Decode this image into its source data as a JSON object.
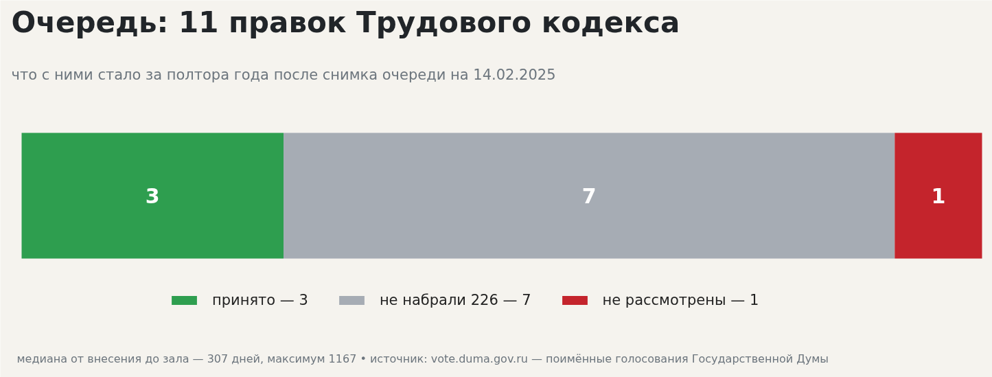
{
  "chart_data": {
    "type": "bar",
    "orientation": "horizontal",
    "stacked": true,
    "title": "Очередь: 11 правок Трудового кодекса",
    "subtitle": "что с ними стало за полтора года после снимка очереди на 14.02.2025",
    "categories": [
      null
    ],
    "series": [
      {
        "name": "принято — 3",
        "color": "#2e9e4f",
        "values": [
          3
        ]
      },
      {
        "name": "не набрали 226 — 7",
        "color": "#a6acb4",
        "values": [
          7
        ]
      },
      {
        "name": "не рассмотрены — 1",
        "color": "#c4242c",
        "values": [
          1
        ]
      }
    ],
    "data_labels": true,
    "legend": "bottom",
    "grid": false,
    "tick_labels": false,
    "annotations": [
      "медиана от внесения до зала — 307 дней, максимум 1167 • источник: vote.duma.gov.ru — поимённые голосования Государственной Думы"
    ]
  }
}
